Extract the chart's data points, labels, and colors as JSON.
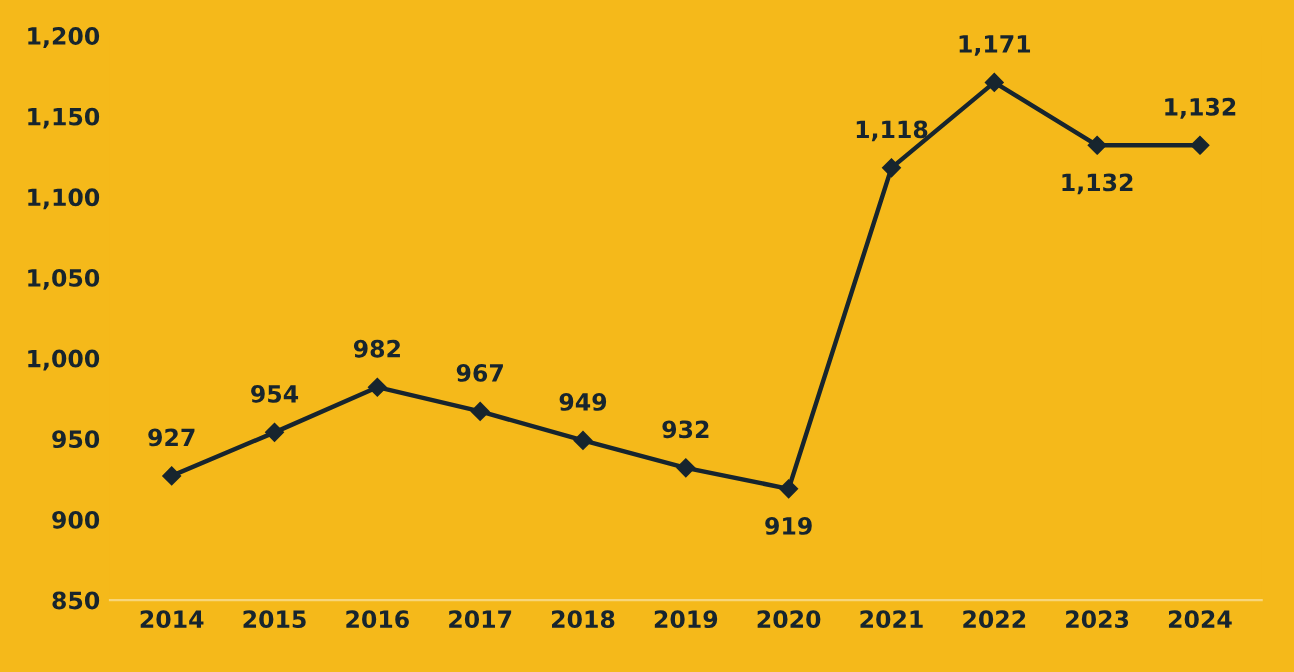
{
  "chart_data": {
    "type": "line",
    "categories": [
      "2014",
      "2015",
      "2016",
      "2017",
      "2018",
      "2019",
      "2020",
      "2021",
      "2022",
      "2023",
      "2024"
    ],
    "series": [
      {
        "color": "#17252e",
        "values": [
          927,
          954,
          982,
          967,
          949,
          932,
          919,
          1118,
          1171,
          1132,
          1132
        ],
        "value_labels": [
          "927",
          "954",
          "982",
          "967",
          "949",
          "932",
          "919",
          "1,118",
          "1,171",
          "1,132",
          "1,132"
        ]
      }
    ],
    "ylim": [
      850,
      1200
    ],
    "yticks": [
      850,
      900,
      950,
      {
        "value": 1000,
        "label": "1,000"
      },
      {
        "value": 1050,
        "label": "1,050"
      },
      {
        "value": 1100,
        "label": "1,100"
      },
      {
        "value": 1150,
        "label": "1,150"
      },
      {
        "value": 1200,
        "label": "1,200"
      }
    ],
    "marker": "diamond",
    "line_style": "solid",
    "grid": false,
    "legend": false
  }
}
